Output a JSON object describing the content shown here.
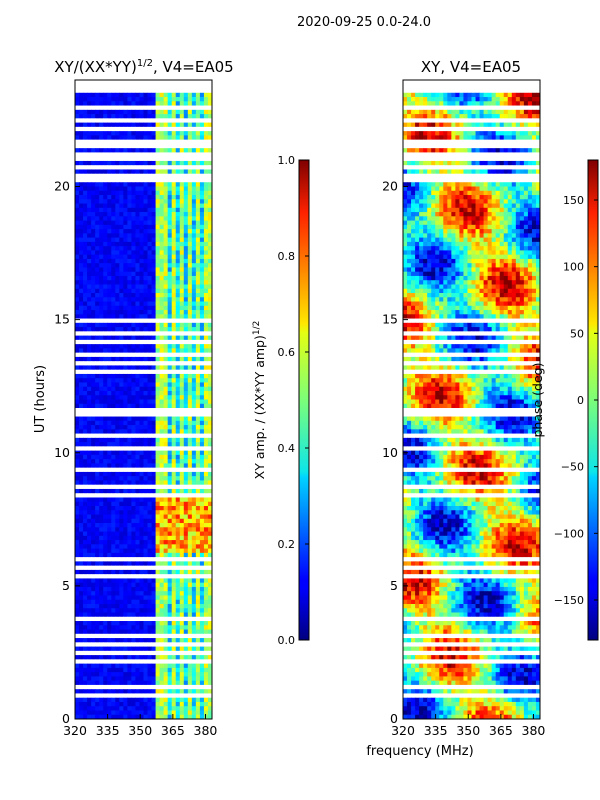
{
  "suptitle": "2020-09-25 0.0-24.0",
  "xlabel_shared": "frequency (MHz)",
  "chart_data": [
    {
      "type": "heatmap",
      "title": "XY/(XX*YY)",
      "title_exponent": "1/2",
      "title_suffix": ", V4=EA05",
      "xlabel": "",
      "ylabel": "UT (hours)",
      "xlim": [
        320,
        383
      ],
      "ylim": [
        0,
        24
      ],
      "x_ticks": [
        320,
        335,
        350,
        365,
        380
      ],
      "y_ticks": [
        0,
        5,
        10,
        15,
        20
      ],
      "colorbar": {
        "label": "XY amp. / (XX*YY amp)",
        "label_exponent": "1/2",
        "range": [
          0.0,
          1.0
        ],
        "ticks": [
          "0.0",
          "0.2",
          "0.4",
          "0.6",
          "0.8",
          "1.0"
        ],
        "tick_values": [
          0.0,
          0.2,
          0.4,
          0.6,
          0.8,
          1.0
        ],
        "colormap": "jet"
      },
      "features": {
        "high_amplitude_band_mhz": [
          357,
          383
        ],
        "bright_region_ut": [
          6.3,
          8.3
        ],
        "bright_region_value": 0.85,
        "background_value": 0.08
      }
    },
    {
      "type": "heatmap",
      "title": "XY, V4=EA05",
      "xlabel": "frequency (MHz)",
      "ylabel": "",
      "xlim": [
        320,
        383
      ],
      "ylim": [
        0,
        24
      ],
      "x_ticks": [
        320,
        335,
        350,
        365,
        380
      ],
      "y_ticks": [
        0,
        5,
        10,
        15,
        20
      ],
      "colorbar": {
        "label": "phase (deg)",
        "range": [
          -180,
          180
        ],
        "ticks": [
          "150",
          "100",
          "50",
          "0",
          "−50",
          "−100",
          "−150"
        ],
        "tick_values": [
          150,
          100,
          50,
          0,
          -50,
          -100,
          -150
        ],
        "colormap": "jet"
      }
    }
  ],
  "colors": {
    "jet_low": "#00007f",
    "jet_high": "#7f0000",
    "gap": "#ffffff"
  }
}
